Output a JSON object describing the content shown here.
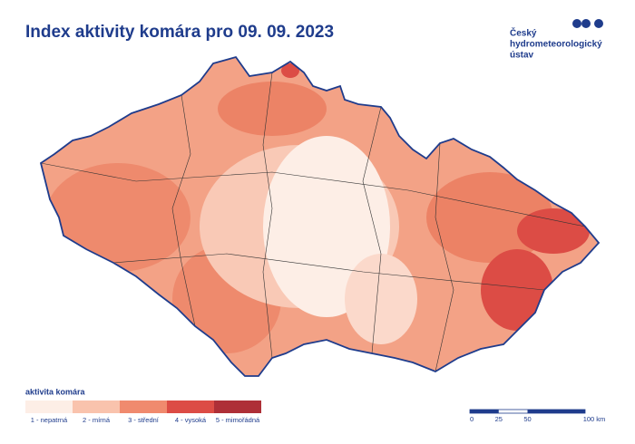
{
  "header": {
    "title": "Index aktivity komára pro 09. 09. 2023"
  },
  "logo": {
    "lines": [
      "Český",
      "hydrometeorologický",
      "ústav"
    ]
  },
  "legend": {
    "title": "aktivita komára",
    "items": [
      {
        "label": "1 - nepatrná",
        "color": "#fdeee6"
      },
      {
        "label": "2 - mírná",
        "color": "#f9c3ad"
      },
      {
        "label": "3 - střední",
        "color": "#f08a6e"
      },
      {
        "label": "4 - vysoká",
        "color": "#dc4c45"
      },
      {
        "label": "5 - mimořádná",
        "color": "#ae2f37"
      }
    ]
  },
  "scale": {
    "ticks": [
      0,
      25,
      50,
      {
        "value": 100,
        "label": "100 km"
      }
    ]
  }
}
